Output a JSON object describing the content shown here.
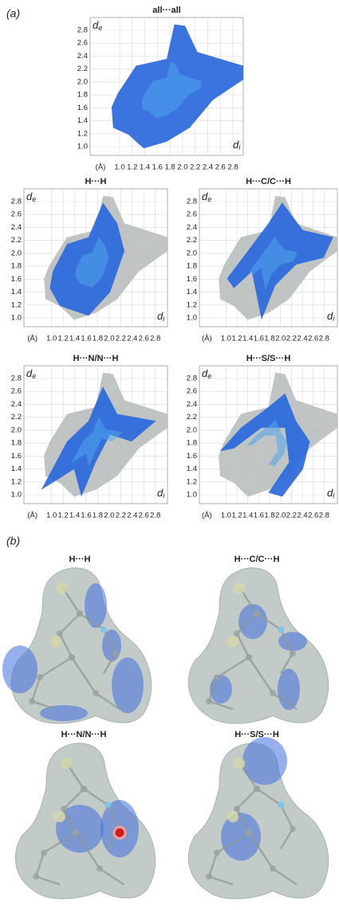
{
  "panel_a": {
    "label": "(a)",
    "unit": "(Å)",
    "y_label": {
      "base": "d",
      "sub": "e"
    },
    "x_label": {
      "base": "d",
      "sub": "i"
    },
    "yticks": [
      "1.0",
      "1.2",
      "1.4",
      "1.6",
      "1.8",
      "2.0",
      "2.2",
      "2.4",
      "2.6",
      "2.8"
    ],
    "xticks": [
      "1.0",
      "1.2",
      "1.4",
      "1.6",
      "1.8",
      "2.0",
      "2.2",
      "2.4",
      "2.6",
      "2.8"
    ],
    "plots": [
      {
        "title": "all···all"
      },
      {
        "title": "H···H"
      },
      {
        "title": "H···C/C···H"
      },
      {
        "title": "H···N/N···H"
      },
      {
        "title": "H···S/S···H"
      }
    ]
  },
  "panel_b": {
    "label": "(b)",
    "surfaces": [
      {
        "title": "H···H"
      },
      {
        "title": "H···C/C···H"
      },
      {
        "title": "H···N/N···H"
      },
      {
        "title": "H···S/S···H"
      }
    ]
  }
}
